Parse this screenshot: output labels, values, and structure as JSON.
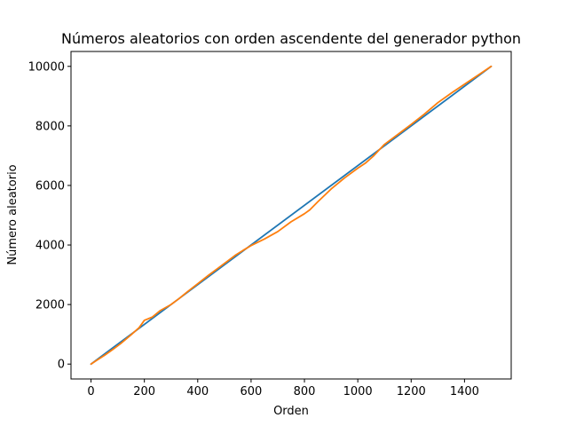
{
  "chart_data": {
    "type": "line",
    "title": "Números aleatorios con orden ascendente del generador python",
    "xlabel": "Orden",
    "ylabel": "Número aleatorio",
    "xlim": [
      -75,
      1575
    ],
    "ylim": [
      -500,
      10500
    ],
    "xticks": [
      0,
      200,
      400,
      600,
      800,
      1000,
      1200,
      1400
    ],
    "yticks": [
      0,
      2000,
      4000,
      6000,
      8000,
      10000
    ],
    "grid": false,
    "legend": "none",
    "series": [
      {
        "color": "#1f77b4",
        "x": [
          0,
          1500
        ],
        "y": [
          0,
          10000
        ]
      },
      {
        "color": "#ff7f0e",
        "x": [
          0,
          20,
          50,
          80,
          110,
          150,
          180,
          200,
          230,
          260,
          300,
          330,
          360,
          400,
          440,
          470,
          500,
          540,
          570,
          600,
          650,
          700,
          750,
          800,
          820,
          850,
          900,
          950,
          1000,
          1030,
          1060,
          1100,
          1130,
          1160,
          1200,
          1250,
          1300,
          1350,
          1400,
          1450,
          1500
        ],
        "y": [
          0,
          120,
          290,
          480,
          680,
          980,
          1220,
          1470,
          1580,
          1800,
          2000,
          2200,
          2420,
          2700,
          2980,
          3180,
          3380,
          3650,
          3820,
          3980,
          4200,
          4450,
          4780,
          5050,
          5180,
          5450,
          5880,
          6250,
          6580,
          6760,
          7000,
          7380,
          7580,
          7780,
          8050,
          8400,
          8780,
          9100,
          9400,
          9700,
          10000
        ]
      }
    ]
  }
}
